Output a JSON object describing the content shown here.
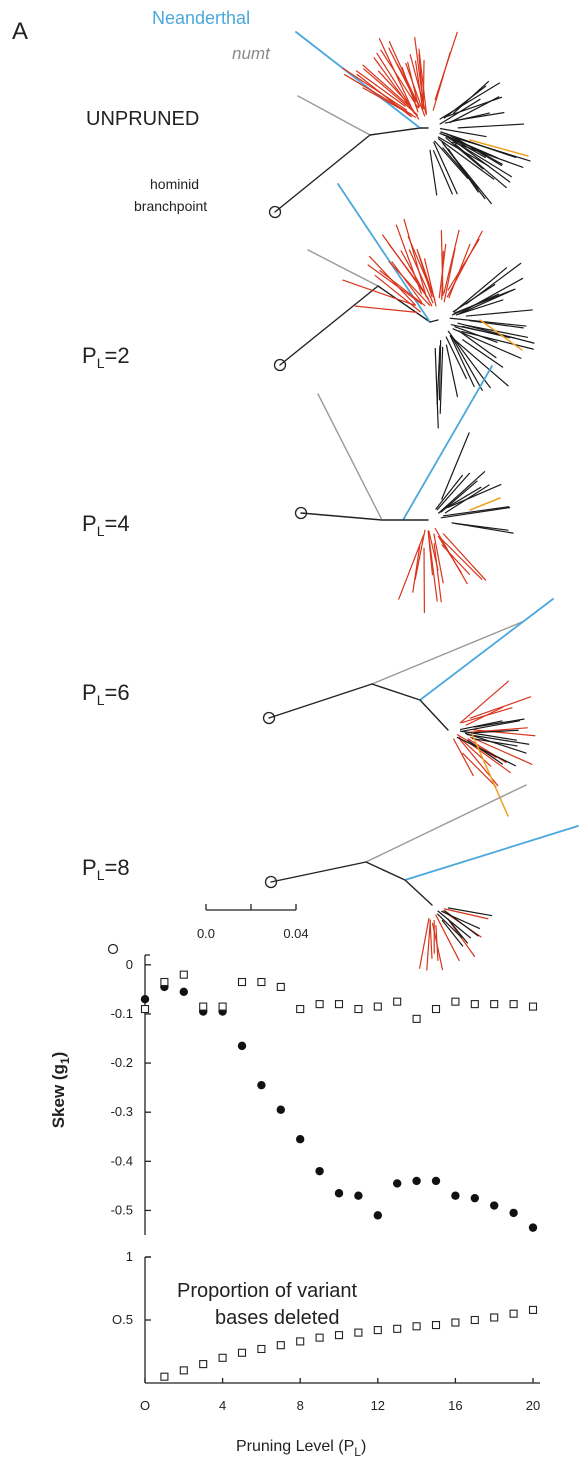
{
  "figure": {
    "panel_letter": "A",
    "labels": {
      "neanderthal": "Neanderthal",
      "numt": "numt",
      "unpruned": "UNPRUNED",
      "hominid_line1": "hominid",
      "hominid_line2": "branchpoint"
    },
    "stages": [
      {
        "prefix": "P",
        "sub": "L",
        "suffix": "=2"
      },
      {
        "prefix": "P",
        "sub": "L",
        "suffix": "=4"
      },
      {
        "prefix": "P",
        "sub": "L",
        "suffix": "=6"
      },
      {
        "prefix": "P",
        "sub": "L",
        "suffix": "=8"
      }
    ],
    "scale_bar": {
      "labels": [
        "0.0",
        "0.04"
      ]
    },
    "colors": {
      "neanderthal": "#4ba8dc",
      "numt": "#9a9a9a",
      "red_clade": "#d9341c",
      "black_clade": "#1a1a1a",
      "orange_branch": "#f0a020"
    }
  },
  "chart_data": [
    {
      "type": "scatter",
      "ylabel": "Skew (g1)",
      "ylabel_text": "Skew (g",
      "ylabel_sub": "1",
      "ylabel_close": ")",
      "ylim": [
        -0.55,
        0.02
      ],
      "yticks": [
        0,
        -0.1,
        -0.2,
        -0.3,
        -0.4,
        -0.5
      ],
      "ytick_labels": [
        "0",
        "-0.1",
        "-0.2",
        "-0.3",
        "-0.4",
        "-0.5"
      ],
      "xlim": [
        0,
        20
      ],
      "series": [
        {
          "marker": "filled-circle",
          "x": [
            0,
            1,
            2,
            3,
            4,
            5,
            6,
            7,
            8,
            9,
            10,
            11,
            12,
            13,
            14,
            15,
            16,
            17,
            18,
            19,
            20
          ],
          "y": [
            -0.07,
            -0.045,
            -0.055,
            -0.095,
            -0.095,
            -0.165,
            -0.245,
            -0.295,
            -0.355,
            -0.42,
            -0.465,
            -0.47,
            -0.51,
            -0.445,
            -0.44,
            -0.44,
            -0.47,
            -0.475,
            -0.49,
            -0.505,
            -0.535
          ]
        },
        {
          "marker": "open-square",
          "x": [
            0,
            1,
            2,
            3,
            4,
            5,
            6,
            7,
            8,
            9,
            10,
            11,
            12,
            13,
            14,
            15,
            16,
            17,
            18,
            19,
            20
          ],
          "y": [
            -0.09,
            -0.035,
            -0.02,
            -0.085,
            -0.085,
            -0.035,
            -0.035,
            -0.045,
            -0.09,
            -0.08,
            -0.08,
            -0.09,
            -0.085,
            -0.075,
            -0.11,
            -0.09,
            -0.075,
            -0.08,
            -0.08,
            -0.08,
            -0.085
          ]
        }
      ],
      "extra_marks": [
        {
          "marker": "open-circle",
          "x": 0,
          "y": 0.02
        }
      ]
    },
    {
      "type": "scatter",
      "title_line1": "Proportion of variant",
      "title_line2": "bases deleted",
      "xlabel": "Pruning Level (PL)",
      "xlabel_text": "Pruning Level (P",
      "xlabel_sub": "L",
      "xlabel_close": ")",
      "xlim": [
        0,
        20
      ],
      "xticks": [
        0,
        4,
        8,
        12,
        16,
        20
      ],
      "xtick_labels": [
        "O",
        "4",
        "8",
        "12",
        "16",
        "20"
      ],
      "ylim": [
        0,
        1
      ],
      "yticks": [
        1,
        0.5
      ],
      "ytick_labels": [
        "1",
        "O.5"
      ],
      "series": [
        {
          "marker": "open-square",
          "x": [
            1,
            2,
            3,
            4,
            5,
            6,
            7,
            8,
            9,
            10,
            11,
            12,
            13,
            14,
            15,
            16,
            17,
            18,
            19,
            20
          ],
          "y": [
            0.05,
            0.1,
            0.15,
            0.2,
            0.24,
            0.27,
            0.3,
            0.33,
            0.36,
            0.38,
            0.4,
            0.42,
            0.43,
            0.45,
            0.46,
            0.48,
            0.5,
            0.52,
            0.55,
            0.58
          ]
        }
      ]
    }
  ]
}
